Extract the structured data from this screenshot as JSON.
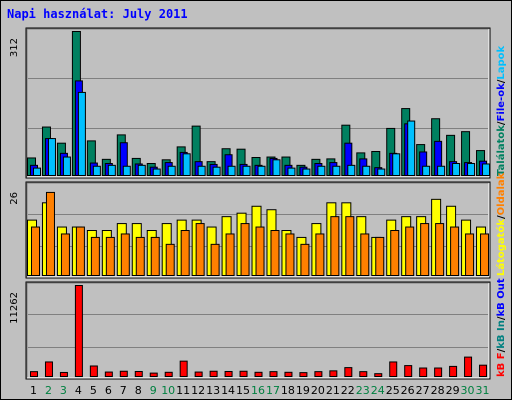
{
  "title": "Napi használat: July 2011",
  "colors": {
    "background": "#c0c0c0",
    "panel": "#c0c0c0",
    "grid": "#808080",
    "hits": "#008060",
    "files": "#0000ff",
    "pages": "#00c0ff",
    "visits": "#ffff00",
    "sites": "#ff8000",
    "kbin": "#008080",
    "kbout": "#0000ff",
    "kbf": "#ff0000",
    "weekend_day": "#008040",
    "weekday": "#000000"
  },
  "chart_data": [
    {
      "type": "bar",
      "panel": "top",
      "y_max_label": "312",
      "ylim": [
        0,
        312
      ],
      "x": [
        "1",
        "2",
        "3",
        "4",
        "5",
        "6",
        "7",
        "8",
        "9",
        "10",
        "11",
        "12",
        "13",
        "14",
        "15",
        "16",
        "17",
        "18",
        "19",
        "20",
        "21",
        "22",
        "23",
        "24",
        "25",
        "26",
        "27",
        "28",
        "29",
        "30",
        "31"
      ],
      "series": [
        {
          "name": "Találatok",
          "color": "#008060",
          "values": [
            38,
            105,
            70,
            312,
            75,
            35,
            88,
            37,
            26,
            34,
            62,
            107,
            30,
            58,
            57,
            39,
            40,
            40,
            22,
            35,
            36,
            109,
            49,
            52,
            102,
            145,
            67,
            123,
            87,
            95,
            54
          ]
        },
        {
          "name": "File-ok",
          "color": "#0000ff",
          "values": [
            22,
            80,
            48,
            205,
            27,
            26,
            71,
            25,
            18,
            28,
            50,
            30,
            24,
            45,
            24,
            22,
            37,
            22,
            18,
            26,
            28,
            70,
            36,
            17,
            48,
            112,
            51,
            74,
            30,
            28,
            31
          ]
        },
        {
          "name": "Lapok",
          "color": "#00c0ff",
          "values": [
            16,
            80,
            40,
            180,
            20,
            22,
            20,
            22,
            14,
            20,
            47,
            20,
            18,
            20,
            20,
            20,
            34,
            16,
            14,
            20,
            20,
            22,
            20,
            14,
            47,
            118,
            20,
            20,
            26,
            26,
            25
          ]
        }
      ],
      "legend": [
        "Találatok",
        "/",
        "File-ok",
        "/",
        "Lapok"
      ]
    },
    {
      "type": "bar",
      "panel": "middle",
      "y_max_label": "26",
      "ylim": [
        0,
        26
      ],
      "x": [
        "1",
        "2",
        "3",
        "4",
        "5",
        "6",
        "7",
        "8",
        "9",
        "10",
        "11",
        "12",
        "13",
        "14",
        "15",
        "16",
        "17",
        "18",
        "19",
        "20",
        "21",
        "22",
        "23",
        "24",
        "25",
        "26",
        "27",
        "28",
        "29",
        "30",
        "31"
      ],
      "series": [
        {
          "name": "Látogatók",
          "color": "#ffff00",
          "values": [
            16,
            21,
            14,
            14,
            13,
            13,
            15,
            15,
            13,
            15,
            16,
            16,
            14,
            17,
            18,
            20,
            19,
            13,
            11,
            15,
            21,
            21,
            17,
            11,
            16,
            17,
            17,
            22,
            20,
            16,
            14
          ]
        },
        {
          "name": "Oldalak",
          "color": "#ff8000",
          "values": [
            14,
            24,
            12,
            14,
            11,
            11,
            12,
            11,
            11,
            9,
            13,
            15,
            9,
            12,
            15,
            14,
            13,
            12,
            9,
            12,
            17,
            17,
            12,
            11,
            13,
            14,
            15,
            15,
            14,
            12,
            12
          ]
        }
      ],
      "legend": [
        "Látogatók",
        "/",
        "Oldalak"
      ]
    },
    {
      "type": "bar",
      "panel": "bottom",
      "y_max_label": "11262",
      "ylim": [
        0,
        11262
      ],
      "x": [
        "1",
        "2",
        "3",
        "4",
        "5",
        "6",
        "7",
        "8",
        "9",
        "10",
        "11",
        "12",
        "13",
        "14",
        "15",
        "16",
        "17",
        "18",
        "19",
        "20",
        "21",
        "22",
        "23",
        "24",
        "25",
        "26",
        "27",
        "28",
        "29",
        "30",
        "31"
      ],
      "series": [
        {
          "name": "kB F",
          "color": "#ff0000",
          "values": [
            600,
            1800,
            500,
            11262,
            1300,
            550,
            650,
            620,
            420,
            520,
            1900,
            550,
            650,
            620,
            650,
            520,
            600,
            520,
            480,
            600,
            700,
            1100,
            600,
            350,
            1800,
            1350,
            1050,
            1050,
            1250,
            2400,
            1400
          ]
        }
      ],
      "legend": [
        "kB F",
        "/",
        "kB In",
        "/",
        "kB Out"
      ]
    }
  ],
  "x_labels": {
    "days": [
      "1",
      "2",
      "3",
      "4",
      "5",
      "6",
      "7",
      "8",
      "9",
      "10",
      "11",
      "12",
      "13",
      "14",
      "15",
      "16",
      "17",
      "18",
      "19",
      "20",
      "21",
      "22",
      "23",
      "24",
      "25",
      "26",
      "27",
      "28",
      "29",
      "30",
      "31"
    ],
    "weekend": [
      2,
      3,
      9,
      10,
      16,
      17,
      23,
      24,
      30,
      31
    ]
  }
}
